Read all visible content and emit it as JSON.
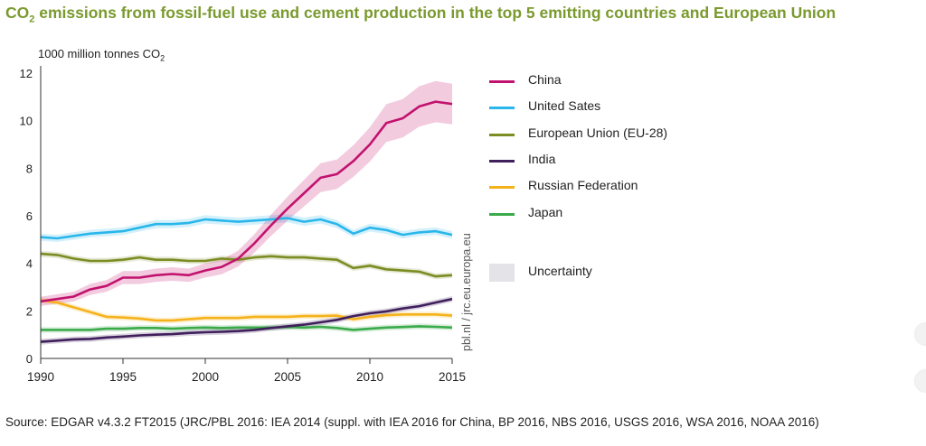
{
  "title_main": "CO",
  "title_sub": "2",
  "title_rest": " emissions from fossil-fuel use and cement production in the top 5 emitting countries and European Union",
  "unit_main": "1000 million tonnes CO",
  "unit_sub": "2",
  "watermark": "pbl.nl / jrc.eu.europa.eu",
  "source": "Source: EDGAR v4.3.2 FT2015 (JRC/PBL 2016: IEA 2014 (suppl. with IEA 2016 for China, BP 2016, NBS 2016, USGS 2016, WSA 2016, NOAA 2016)",
  "colors": {
    "title": "#7a9a2e",
    "china": "#c2126e",
    "usa": "#29b6ea",
    "eu": "#7b8c23",
    "india": "#3f1f5c",
    "russia": "#f5b21b",
    "japan": "#3aaa4a",
    "uncertainty": "#e3e3e8"
  },
  "chart_data": {
    "type": "line",
    "title": "CO2 emissions from fossil-fuel use and cement production in the top 5 emitting countries and European Union",
    "ylabel": "1000 million tonnes CO2",
    "xlabel": "",
    "xlim": [
      1990,
      2015
    ],
    "ylim": [
      0,
      12
    ],
    "x_ticks": [
      "1990",
      "1995",
      "2000",
      "2005",
      "2010",
      "2015"
    ],
    "y_ticks": [
      "0",
      "2",
      "4",
      "6",
      "8",
      "10",
      "12"
    ],
    "x": [
      1990,
      1991,
      1992,
      1993,
      1994,
      1995,
      1996,
      1997,
      1998,
      1999,
      2000,
      2001,
      2002,
      2003,
      2004,
      2005,
      2006,
      2007,
      2008,
      2009,
      2010,
      2011,
      2012,
      2013,
      2014,
      2015
    ],
    "series": [
      {
        "name": "China",
        "key": "china",
        "values": [
          2.4,
          2.5,
          2.6,
          2.9,
          3.05,
          3.4,
          3.4,
          3.5,
          3.55,
          3.5,
          3.7,
          3.85,
          4.2,
          4.85,
          5.6,
          6.3,
          6.95,
          7.6,
          7.75,
          8.3,
          9.0,
          9.9,
          10.1,
          10.6,
          10.8,
          10.7
        ],
        "uncertainty": 0.08
      },
      {
        "name": "United Sates",
        "key": "usa",
        "values": [
          5.1,
          5.05,
          5.15,
          5.25,
          5.3,
          5.35,
          5.5,
          5.65,
          5.65,
          5.7,
          5.85,
          5.8,
          5.75,
          5.8,
          5.85,
          5.9,
          5.75,
          5.85,
          5.65,
          5.25,
          5.5,
          5.4,
          5.2,
          5.3,
          5.35,
          5.2
        ],
        "uncertainty": 0.03
      },
      {
        "name": "European Union (EU-28)",
        "key": "eu",
        "values": [
          4.4,
          4.35,
          4.2,
          4.1,
          4.1,
          4.15,
          4.25,
          4.15,
          4.15,
          4.1,
          4.1,
          4.2,
          4.15,
          4.25,
          4.3,
          4.25,
          4.25,
          4.2,
          4.15,
          3.8,
          3.9,
          3.75,
          3.7,
          3.65,
          3.45,
          3.5
        ],
        "uncertainty": 0.03
      },
      {
        "name": "India",
        "key": "india",
        "values": [
          0.7,
          0.75,
          0.8,
          0.82,
          0.88,
          0.92,
          0.97,
          1.0,
          1.02,
          1.07,
          1.1,
          1.12,
          1.15,
          1.2,
          1.28,
          1.35,
          1.42,
          1.52,
          1.62,
          1.78,
          1.9,
          1.98,
          2.1,
          2.2,
          2.35,
          2.5
        ],
        "uncertainty": 0.04
      },
      {
        "name": "Russian Federation",
        "key": "russia",
        "values": [
          2.45,
          2.35,
          2.15,
          1.95,
          1.75,
          1.72,
          1.68,
          1.6,
          1.6,
          1.65,
          1.7,
          1.7,
          1.7,
          1.75,
          1.75,
          1.75,
          1.78,
          1.78,
          1.8,
          1.65,
          1.75,
          1.82,
          1.85,
          1.85,
          1.85,
          1.8
        ],
        "uncertainty": 0.03
      },
      {
        "name": "Japan",
        "key": "japan",
        "values": [
          1.2,
          1.2,
          1.2,
          1.2,
          1.25,
          1.25,
          1.28,
          1.28,
          1.25,
          1.28,
          1.3,
          1.28,
          1.3,
          1.3,
          1.3,
          1.32,
          1.3,
          1.33,
          1.28,
          1.2,
          1.25,
          1.3,
          1.32,
          1.35,
          1.33,
          1.3
        ],
        "uncertainty": 0.03
      }
    ],
    "legend": {
      "position": "right",
      "uncertainty_label": "Uncertainty"
    },
    "grid": false
  }
}
